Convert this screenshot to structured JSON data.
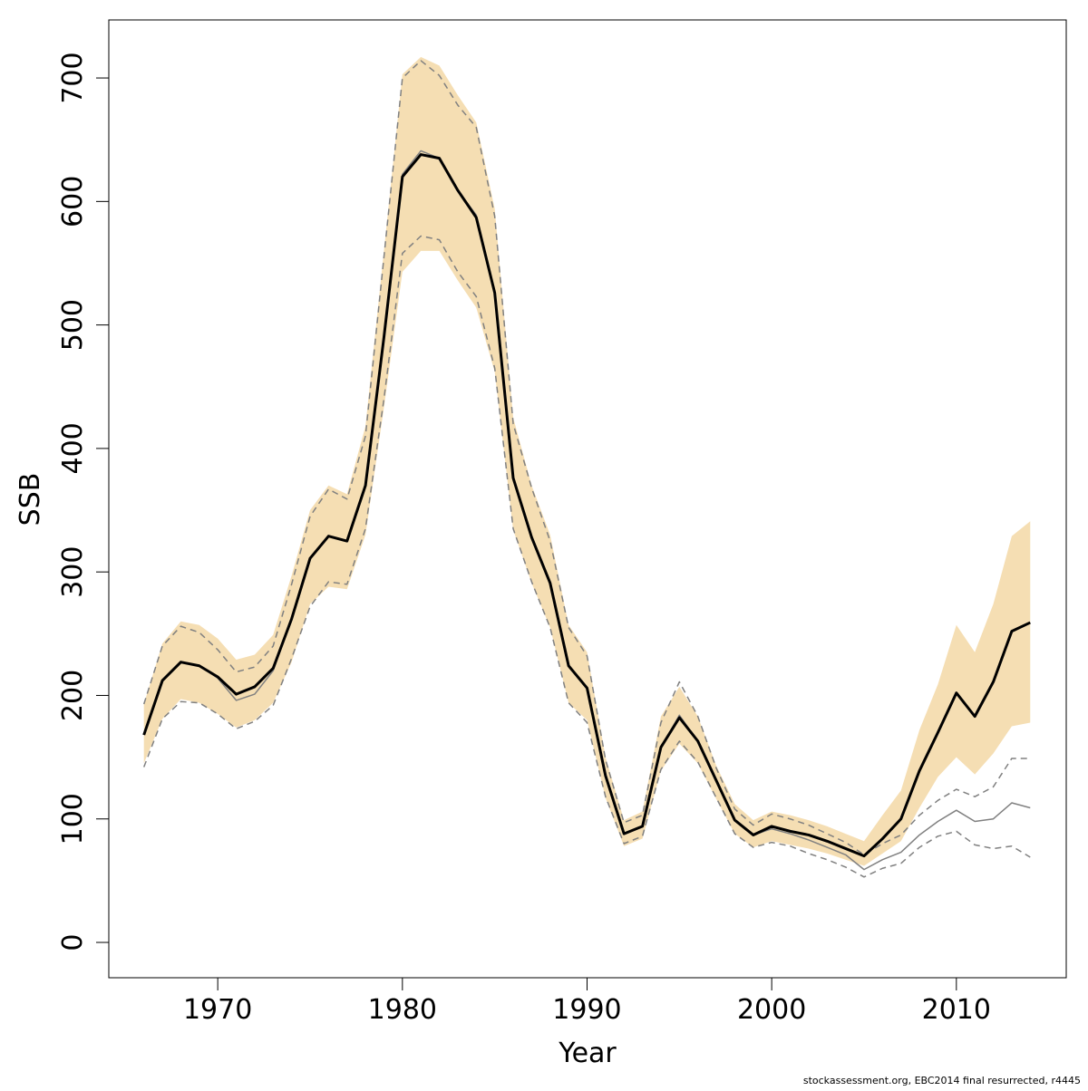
{
  "chart_data": {
    "type": "line",
    "x_label": "Year",
    "y_label": "SSB",
    "footnote": "stockassessment.org, EBC2014 final resurrected, r4445",
    "x": [
      1966,
      1967,
      1968,
      1969,
      1970,
      1971,
      1972,
      1973,
      1974,
      1975,
      1976,
      1977,
      1978,
      1979,
      1980,
      1981,
      1982,
      1983,
      1984,
      1985,
      1986,
      1987,
      1988,
      1989,
      1990,
      1991,
      1992,
      1993,
      1994,
      1995,
      1996,
      1997,
      1998,
      1999,
      2000,
      2001,
      2002,
      2003,
      2004,
      2005,
      2006,
      2007,
      2008,
      2009,
      2010,
      2011,
      2012,
      2013,
      2014
    ],
    "xlim": [
      1964.1,
      2015.95
    ],
    "xticks": [
      1970,
      1980,
      1990,
      2000,
      2010
    ],
    "ylim": [
      -28.6,
      747
    ],
    "yticks": [
      0,
      100,
      200,
      300,
      400,
      500,
      600,
      700
    ],
    "band": {
      "color": "#f5deb3",
      "upper": [
        193,
        242,
        260,
        257,
        246,
        229,
        233,
        249,
        297,
        350,
        370,
        363,
        418,
        560,
        703,
        717,
        710,
        686,
        664,
        594,
        425,
        370,
        330,
        257,
        235,
        150,
        99,
        106,
        183,
        207,
        183,
        143,
        112,
        99,
        106,
        103,
        99,
        94,
        88,
        82,
        103,
        123,
        172,
        209,
        257,
        235,
        274,
        329,
        341
      ],
      "lower": [
        145,
        181,
        197,
        194,
        185,
        174,
        180,
        194,
        227,
        274,
        288,
        286,
        330,
        433,
        543,
        560,
        560,
        536,
        514,
        462,
        334,
        291,
        255,
        194,
        180,
        117,
        78,
        84,
        139,
        161,
        145,
        116,
        88,
        77,
        82,
        79,
        76,
        72,
        67,
        62,
        72,
        82,
        109,
        134,
        150,
        136,
        153,
        175,
        178
      ]
    },
    "series": [
      {
        "color": "#808080",
        "style": "dashed",
        "width": 1.5,
        "values": [
          193,
          240,
          256,
          251,
          237,
          219,
          223,
          240,
          290,
          345,
          367,
          359,
          410,
          555,
          700,
          714,
          702,
          678,
          660,
          588,
          420,
          368,
          325,
          255,
          232,
          148,
          97,
          103,
          178,
          211,
          183,
          141,
          108,
          95,
          104,
          100,
          95,
          88,
          81,
          71,
          80,
          87,
          103,
          115,
          124,
          118,
          126,
          149,
          149
        ]
      },
      {
        "color": "#808080",
        "style": "dashed",
        "width": 1.5,
        "values": [
          142,
          181,
          195,
          194,
          185,
          173,
          179,
          192,
          230,
          272,
          292,
          290,
          335,
          440,
          558,
          572,
          569,
          543,
          523,
          465,
          335,
          292,
          255,
          194,
          178,
          118,
          80,
          86,
          140,
          163,
          146,
          117,
          88,
          77,
          81,
          78,
          72,
          67,
          61,
          53,
          60,
          64,
          77,
          86,
          90,
          79,
          76,
          78,
          69
        ]
      },
      {
        "color": "#808080",
        "style": "solid",
        "width": 1.5,
        "values": [
          168,
          212,
          227,
          224,
          214,
          196,
          201,
          220,
          262,
          311,
          329,
          325,
          370,
          490,
          622,
          641,
          635,
          609,
          589,
          526,
          376,
          328,
          291,
          224,
          206,
          135,
          88,
          94,
          158,
          184,
          163,
          131,
          99,
          87,
          92,
          88,
          83,
          77,
          71,
          59,
          67,
          73,
          87,
          98,
          107,
          98,
          100,
          113,
          109
        ]
      },
      {
        "color": "#000000",
        "style": "solid",
        "width": 3,
        "values": [
          168,
          212,
          227,
          224,
          215,
          201,
          207,
          222,
          262,
          311,
          329,
          325,
          370,
          490,
          620,
          638,
          635,
          609,
          587,
          526,
          376,
          328,
          291,
          224,
          206,
          135,
          88,
          94,
          158,
          182,
          163,
          131,
          99,
          87,
          94,
          90,
          87,
          82,
          76,
          70,
          84,
          100,
          139,
          170,
          202,
          183,
          211,
          252,
          259
        ]
      }
    ]
  }
}
